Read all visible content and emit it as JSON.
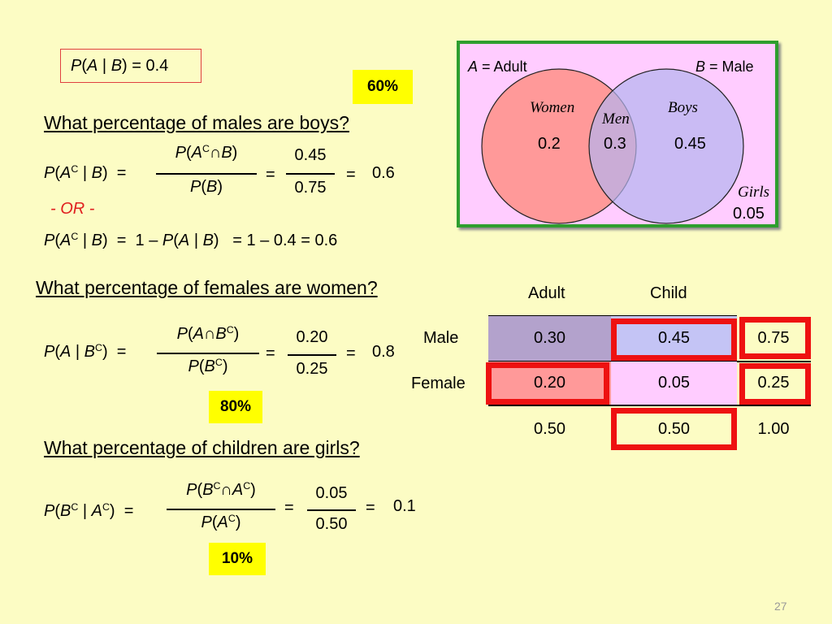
{
  "header": {
    "given_box": {
      "p": "P",
      "a": "A",
      "bar": "|",
      "b": "B",
      "rest": ") = 0.4"
    }
  },
  "badges": {
    "q1": "60%",
    "q2": "80%",
    "q3": "10%"
  },
  "venn": {
    "label_a": "A",
    "label_a_text": " = Adult",
    "label_b": "B",
    "label_b_text": " = Male",
    "women": "Women",
    "men": "Men",
    "boys": "Boys",
    "girls": "Girls",
    "v_women": "0.2",
    "v_men": "0.3",
    "v_boys": "0.45",
    "v_girls": "0.05",
    "colors": {
      "border": "#2e9e2e",
      "background": "#ffccff",
      "women_circle": "#ff9999",
      "boys_circle": "#c4c4f5"
    }
  },
  "q1": {
    "question": "What percentage of males are boys?",
    "frac_num_val": "0.45",
    "frac_den_val": "0.75",
    "result": "0.6",
    "or_text": "- OR -",
    "alt_rhs": "=  1 – 0.4  =  0.6"
  },
  "q2": {
    "question": "What percentage of females are women?",
    "frac_num_val": "0.20",
    "frac_den_val": "0.25",
    "result": "0.8"
  },
  "q3": {
    "question": "What percentage of children are girls?",
    "frac_num_val": "0.05",
    "frac_den_val": "0.50",
    "result": "0.1"
  },
  "table": {
    "col_adult": "Adult",
    "col_child": "Child",
    "row_male": "Male",
    "row_female": "Female",
    "male_adult": "0.30",
    "male_child": "0.45",
    "male_total": "0.75",
    "female_adult": "0.20",
    "female_child": "0.05",
    "female_total": "0.25",
    "total_adult": "0.50",
    "total_child": "0.50",
    "total_total": "1.00",
    "colors": {
      "male_adult": "#b3a2cc",
      "male_child": "#c4c4f5",
      "female_adult": "#ff9999",
      "female_child": "#ffccff",
      "highlight": "#ee1111"
    }
  },
  "footer": {
    "page_number": "27"
  }
}
